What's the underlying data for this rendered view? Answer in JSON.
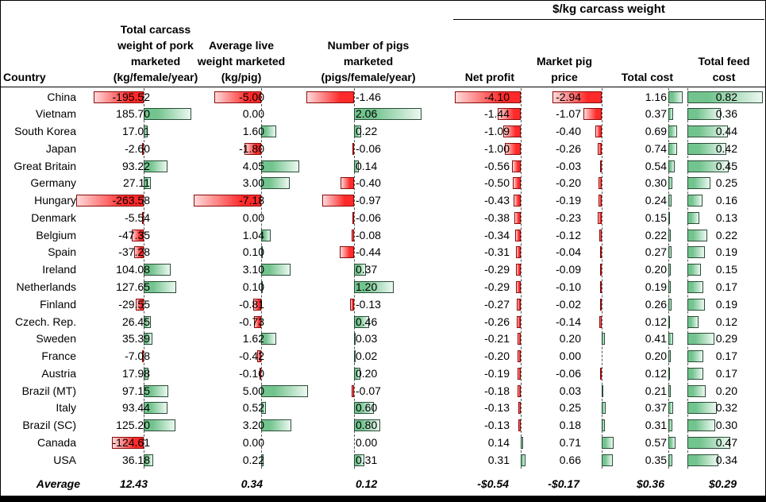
{
  "chart_data": {
    "type": "table",
    "group_header": "$/kg carcass weight",
    "columns": {
      "country": "Country",
      "carcass": "Total carcass\nweight of pork\nmarketed\n(kg/female/year)",
      "live": "Average live\nweight marketed\n(kg/pig)",
      "pigs": "Number of pigs\nmarketed\n(pigs/female/year)",
      "net": "Net profit",
      "price": "Market pig\nprice",
      "cost": "Total cost",
      "feed": "Total feed\ncost"
    },
    "rows": [
      {
        "country": "China",
        "carcass": -195.52,
        "live": -5.0,
        "pigs": -1.46,
        "net": -4.1,
        "price": -2.94,
        "cost": 1.16,
        "feed": 0.82
      },
      {
        "country": "Vietnam",
        "carcass": 185.7,
        "live": 0.0,
        "pigs": 2.06,
        "net": -1.44,
        "price": -1.07,
        "cost": 0.37,
        "feed": 0.36
      },
      {
        "country": "South Korea",
        "carcass": 17.01,
        "live": 1.6,
        "pigs": 0.22,
        "net": -1.09,
        "price": -0.4,
        "cost": 0.69,
        "feed": 0.44
      },
      {
        "country": "Japan",
        "carcass": -2.6,
        "live": -1.8,
        "pigs": -0.06,
        "net": -1.0,
        "price": -0.26,
        "cost": 0.74,
        "feed": 0.42
      },
      {
        "country": "Great Britain",
        "carcass": 93.22,
        "live": 4.05,
        "pigs": 0.14,
        "net": -0.56,
        "price": -0.03,
        "cost": 0.54,
        "feed": 0.45
      },
      {
        "country": "Germany",
        "carcass": 27.11,
        "live": 3.0,
        "pigs": -0.4,
        "net": -0.5,
        "price": -0.2,
        "cost": 0.3,
        "feed": 0.25
      },
      {
        "country": "Hungary",
        "carcass": -263.58,
        "live": -7.18,
        "pigs": -0.97,
        "net": -0.43,
        "price": -0.19,
        "cost": 0.24,
        "feed": 0.16
      },
      {
        "country": "Denmark",
        "carcass": -5.54,
        "live": 0.0,
        "pigs": -0.06,
        "net": -0.38,
        "price": -0.23,
        "cost": 0.15,
        "feed": 0.13
      },
      {
        "country": "Belgium",
        "carcass": -47.35,
        "live": 1.04,
        "pigs": -0.08,
        "net": -0.34,
        "price": -0.12,
        "cost": 0.22,
        "feed": 0.22
      },
      {
        "country": "Spain",
        "carcass": -37.28,
        "live": 0.1,
        "pigs": -0.44,
        "net": -0.31,
        "price": -0.04,
        "cost": 0.27,
        "feed": 0.19
      },
      {
        "country": "Ireland",
        "carcass": 104.08,
        "live": 3.1,
        "pigs": 0.37,
        "net": -0.29,
        "price": -0.09,
        "cost": 0.2,
        "feed": 0.15
      },
      {
        "country": "Netherlands",
        "carcass": 127.65,
        "live": 0.1,
        "pigs": 1.2,
        "net": -0.29,
        "price": -0.1,
        "cost": 0.19,
        "feed": 0.17
      },
      {
        "country": "Finland",
        "carcass": -29.55,
        "live": -0.81,
        "pigs": -0.13,
        "net": -0.27,
        "price": -0.02,
        "cost": 0.26,
        "feed": 0.19
      },
      {
        "country": "Czech. Rep.",
        "carcass": 26.45,
        "live": -0.73,
        "pigs": 0.46,
        "net": -0.26,
        "price": -0.14,
        "cost": 0.12,
        "feed": 0.12
      },
      {
        "country": "Sweden",
        "carcass": 35.39,
        "live": 1.62,
        "pigs": 0.03,
        "net": -0.21,
        "price": 0.2,
        "cost": 0.41,
        "feed": 0.29
      },
      {
        "country": "France",
        "carcass": -7.08,
        "live": -0.42,
        "pigs": 0.02,
        "net": -0.2,
        "price": 0.0,
        "cost": 0.2,
        "feed": 0.17
      },
      {
        "country": "Austria",
        "carcass": 17.98,
        "live": -0.1,
        "pigs": 0.2,
        "net": -0.19,
        "price": -0.06,
        "cost": 0.12,
        "feed": 0.17
      },
      {
        "country": "Brazil (MT)",
        "carcass": 97.15,
        "live": 5.0,
        "pigs": -0.07,
        "net": -0.18,
        "price": 0.03,
        "cost": 0.21,
        "feed": 0.2
      },
      {
        "country": "Italy",
        "carcass": 93.44,
        "live": 0.52,
        "pigs": 0.6,
        "net": -0.13,
        "price": 0.25,
        "cost": 0.37,
        "feed": 0.32
      },
      {
        "country": "Brazil (SC)",
        "carcass": 125.2,
        "live": 3.2,
        "pigs": 0.8,
        "net": -0.13,
        "price": 0.18,
        "cost": 0.31,
        "feed": 0.3
      },
      {
        "country": "Canada",
        "carcass": -124.61,
        "live": 0.0,
        "pigs": 0.0,
        "net": 0.14,
        "price": 0.71,
        "cost": 0.57,
        "feed": 0.47
      },
      {
        "country": "USA",
        "carcass": 36.18,
        "live": 0.22,
        "pigs": 0.31,
        "net": 0.31,
        "price": 0.66,
        "cost": 0.35,
        "feed": 0.34
      }
    ],
    "average": {
      "label": "Average",
      "carcass": "12.43",
      "live": "0.34",
      "pigs": "0.12",
      "net": "-$0.54",
      "price": "-$0.17",
      "cost": "$0.36",
      "feed": "$0.29"
    }
  },
  "colors": {
    "positive_bar_solid": "#72c48e",
    "positive_bar_fade": "#edf8f1",
    "positive_bar_border": "#2b4c38",
    "negative_bar_solid": "#ff2a2a",
    "negative_bar_fade": "#ffd9d9",
    "negative_bar_border": "#8b0b0b"
  }
}
